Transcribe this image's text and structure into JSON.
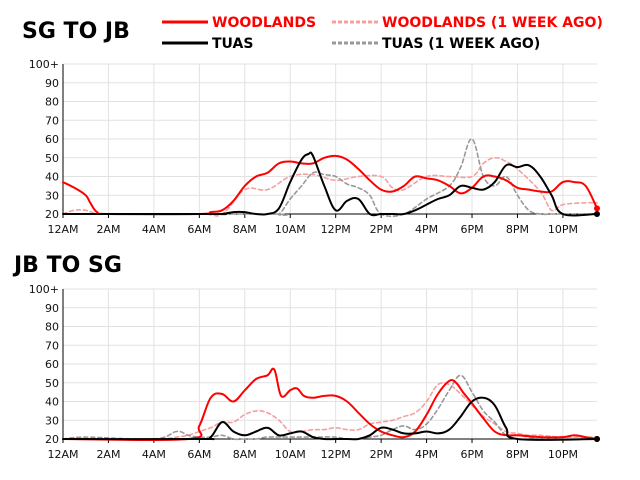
{
  "legend": [
    {
      "label": "WOODLANDS",
      "color": "#ff0000",
      "dashed": false
    },
    {
      "label": "WOODLANDS (1 WEEK AGO)",
      "color": "#f4a0a0",
      "dashed": true
    },
    {
      "label": "TUAS",
      "color": "#000000",
      "dashed": false
    },
    {
      "label": "TUAS (1 WEEK AGO)",
      "color": "#999999",
      "dashed": true
    }
  ],
  "chart_data": [
    {
      "type": "line",
      "title": "SG TO JB",
      "x_tick_labels": [
        "12AM",
        "2AM",
        "4AM",
        "6AM",
        "8AM",
        "10AM",
        "12PM",
        "2PM",
        "4PM",
        "6PM",
        "8PM",
        "10PM"
      ],
      "x_tick_hours": [
        0,
        2,
        4,
        6,
        8,
        10,
        12,
        14,
        16,
        18,
        20,
        22
      ],
      "y_tick_labels": [
        "20",
        "30",
        "40",
        "50",
        "60",
        "70",
        "80",
        "90",
        "100+"
      ],
      "ylim": [
        20,
        100
      ],
      "xlim": [
        0,
        23.5
      ],
      "grid": true,
      "series": [
        {
          "name": "WOODLANDS (1 WEEK AGO)",
          "x": [
            0,
            0.5,
            1,
            1.5,
            2,
            6,
            7,
            8,
            9,
            10,
            11,
            12,
            13,
            14,
            14.5,
            15,
            16,
            17,
            18,
            18.5,
            19,
            19.5,
            20,
            21,
            21.5,
            22,
            23,
            23.5
          ],
          "y": [
            20,
            22,
            22,
            20,
            20,
            20,
            20,
            33,
            33,
            40,
            41,
            38,
            40,
            40,
            34,
            33,
            40,
            40,
            40,
            47,
            50,
            48,
            44,
            32,
            22,
            25,
            26,
            26
          ]
        },
        {
          "name": "TUAS (1 WEEK AGO)",
          "x": [
            0,
            9,
            9.5,
            10,
            10.5,
            11,
            11.5,
            12,
            12.5,
            13,
            13.5,
            14,
            15,
            16,
            17,
            17.5,
            18,
            18.5,
            19,
            19.5,
            20,
            20.5,
            21,
            21.5,
            22,
            23.5
          ],
          "y": [
            20,
            20,
            20,
            28,
            35,
            42,
            41,
            40,
            36,
            34,
            30,
            20,
            20,
            28,
            35,
            45,
            60,
            40,
            35,
            40,
            30,
            22,
            20,
            20,
            20,
            20
          ]
        },
        {
          "name": "WOODLANDS",
          "x": [
            0,
            0.5,
            1,
            1.2,
            1.5,
            2,
            6,
            6.5,
            7,
            7.5,
            8,
            8.5,
            9,
            9.5,
            10,
            10.5,
            11,
            11.5,
            12,
            12.5,
            13,
            13.5,
            14,
            14.5,
            15,
            15.5,
            16,
            16.5,
            17,
            17.5,
            18,
            18.5,
            19,
            19.5,
            20,
            20.5,
            21,
            21.5,
            22,
            22.5,
            23,
            23.5
          ],
          "y": [
            37,
            34,
            30,
            26,
            21,
            20,
            20,
            21,
            22,
            27,
            35,
            40,
            42,
            47,
            48,
            47,
            47,
            50,
            51,
            49,
            44,
            38,
            33,
            32,
            35,
            40,
            39,
            38,
            35,
            31,
            34,
            40,
            40,
            38,
            34,
            33,
            32,
            32,
            37,
            37,
            35,
            23
          ]
        },
        {
          "name": "TUAS",
          "x": [
            0,
            6.5,
            7,
            7.5,
            8,
            8.5,
            9,
            9.5,
            10,
            10.5,
            10.8,
            11,
            11.5,
            12,
            12.5,
            13,
            13.5,
            14,
            14.5,
            15,
            15.5,
            16,
            16.5,
            17,
            17.5,
            18,
            18.5,
            19,
            19.5,
            20,
            20.5,
            21,
            21.5,
            22,
            23.5
          ],
          "y": [
            20,
            20,
            20,
            21,
            21,
            20,
            20,
            23,
            37,
            49,
            52,
            51,
            35,
            22,
            27,
            28,
            20,
            20,
            20,
            20,
            22,
            25,
            28,
            30,
            35,
            34,
            33,
            37,
            46,
            45,
            46,
            40,
            30,
            20,
            20
          ]
        }
      ]
    },
    {
      "type": "line",
      "title": "JB TO SG",
      "x_tick_labels": [
        "12AM",
        "2AM",
        "4AM",
        "6AM",
        "8AM",
        "10AM",
        "12PM",
        "2PM",
        "4PM",
        "6PM",
        "8PM",
        "10PM"
      ],
      "x_tick_hours": [
        0,
        2,
        4,
        6,
        8,
        10,
        12,
        14,
        16,
        18,
        20,
        22
      ],
      "y_tick_labels": [
        "20",
        "30",
        "40",
        "50",
        "60",
        "70",
        "80",
        "90",
        "100+"
      ],
      "ylim": [
        20,
        100
      ],
      "xlim": [
        0,
        23.5
      ],
      "grid": true,
      "series": [
        {
          "name": "WOODLANDS (1 WEEK AGO)",
          "x": [
            0,
            4,
            5,
            5.5,
            6,
            6.5,
            7,
            7.5,
            8,
            8.5,
            9,
            9.5,
            10,
            10.5,
            11,
            11.5,
            12,
            12.5,
            13,
            13.5,
            14,
            14.5,
            15,
            15.5,
            16,
            16.5,
            17,
            17.5,
            18,
            18.5,
            19,
            19.5,
            20,
            20.5,
            21,
            22,
            23.5
          ],
          "y": [
            20,
            20,
            21,
            22,
            24,
            26,
            29,
            29,
            33,
            35,
            34,
            30,
            24,
            24,
            25,
            25,
            26,
            25,
            25,
            28,
            29,
            30,
            32,
            34,
            40,
            49,
            49,
            44,
            38,
            32,
            28,
            24,
            23,
            22,
            22,
            21,
            21
          ]
        },
        {
          "name": "TUAS (1 WEEK AGO)",
          "x": [
            0,
            1,
            4,
            5,
            5.5,
            6,
            6.5,
            7,
            7.5,
            8,
            8.5,
            9,
            10,
            11,
            12,
            12.5,
            13,
            13.5,
            14,
            14.5,
            15,
            15.5,
            16,
            16.5,
            17,
            17.5,
            18,
            18.5,
            19,
            19.5,
            20,
            20.5,
            21,
            22,
            23.5
          ],
          "y": [
            20,
            21,
            20,
            24,
            22,
            21,
            21,
            22,
            20,
            20,
            20,
            21,
            21,
            21,
            21,
            20,
            20,
            21,
            22,
            25,
            27,
            25,
            28,
            36,
            46,
            54,
            45,
            35,
            29,
            22,
            22,
            21,
            20,
            20,
            20
          ]
        },
        {
          "name": "WOODLANDS",
          "x": [
            0,
            5.5,
            6,
            6.5,
            7,
            7.5,
            8,
            8.5,
            9,
            9.3,
            9.6,
            10,
            10.3,
            10.6,
            11,
            11.5,
            12,
            12.5,
            13,
            13.5,
            14,
            14.5,
            15,
            15.5,
            16,
            16.5,
            17,
            17.3,
            17.6,
            18,
            18.5,
            19,
            19.5,
            20,
            21,
            22,
            22.5,
            23,
            23.5
          ],
          "y": [
            20,
            20,
            27,
            42,
            44,
            40,
            46,
            52,
            54,
            57,
            43,
            46,
            47,
            43,
            42,
            43,
            43,
            40,
            34,
            28,
            24,
            22,
            21,
            24,
            33,
            44,
            51,
            50,
            45,
            39,
            31,
            24,
            22,
            22,
            21,
            21,
            22,
            21,
            20
          ]
        },
        {
          "name": "TUAS",
          "x": [
            0,
            6,
            6.5,
            7,
            7.5,
            8,
            8.5,
            9,
            9.5,
            10,
            10.5,
            11,
            11.5,
            12,
            12.5,
            13,
            13.5,
            14,
            14.5,
            15,
            15.5,
            16,
            16.5,
            17,
            17.5,
            18,
            18.5,
            19,
            19.5,
            20,
            23.5
          ],
          "y": [
            20,
            20,
            21,
            29,
            24,
            22,
            24,
            26,
            22,
            23,
            24,
            21,
            20,
            20,
            20,
            20,
            22,
            26,
            25,
            23,
            23,
            24,
            23,
            25,
            32,
            40,
            42,
            38,
            26,
            20,
            20
          ]
        }
      ]
    }
  ]
}
